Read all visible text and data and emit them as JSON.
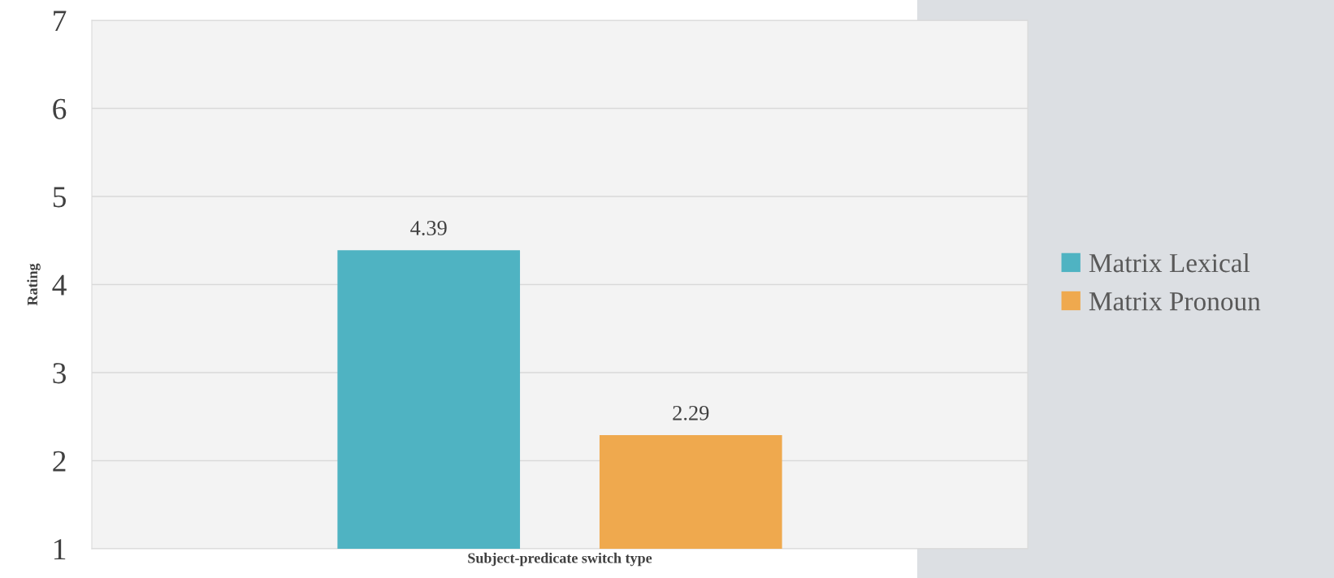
{
  "chart_data": {
    "type": "bar",
    "xlabel": "Subject-predicate switch type",
    "ylabel": "Rating",
    "categories": [
      null
    ],
    "series": [
      {
        "name": "Matrix Lexical",
        "color": "#4fb3c2",
        "values": [
          4.39
        ]
      },
      {
        "name": "Matrix Pronoun",
        "color": "#efa94e",
        "values": [
          2.29
        ]
      }
    ],
    "ylim": [
      1,
      7
    ],
    "yticks": [
      1,
      2,
      3,
      4,
      5,
      6,
      7
    ],
    "grid": "y",
    "legend": "right",
    "data_labels": true
  }
}
